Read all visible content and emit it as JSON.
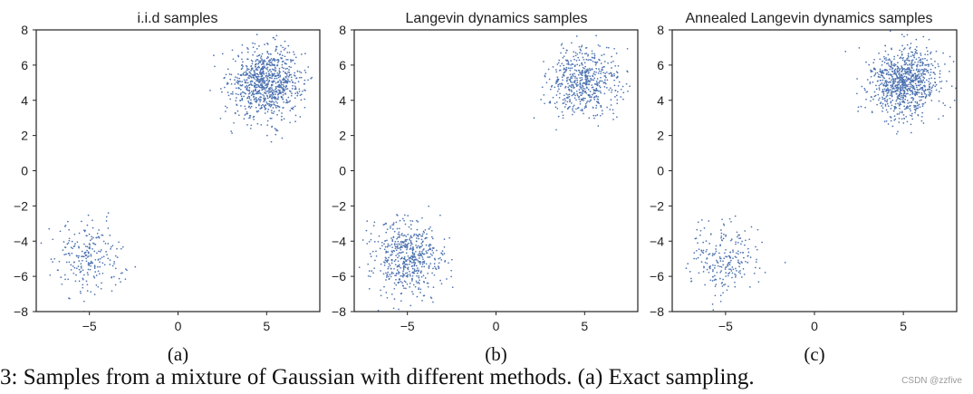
{
  "colors": {
    "point": "#4C72B0",
    "axis": "#222222",
    "text": "#222222"
  },
  "chart_data": [
    {
      "type": "scatter",
      "title": "i.i.d samples",
      "panel_label": "(a)",
      "xlim": [
        -8,
        8
      ],
      "ylim": [
        -8,
        8
      ],
      "xticks": [
        -5,
        0,
        5
      ],
      "yticks": [
        -8,
        -6,
        -4,
        -2,
        0,
        2,
        4,
        6,
        8
      ],
      "xtick_labels": [
        "−5",
        "0",
        "5"
      ],
      "ytick_labels": [
        "−8",
        "−6",
        "−4",
        "−2",
        "0",
        "2",
        "4",
        "6",
        "8"
      ],
      "grid": false,
      "clusters": [
        {
          "name": "mode at (5, 5)",
          "center": [
            5,
            5
          ],
          "std": 1.0,
          "n": 900
        },
        {
          "name": "mode at (-5, -5)",
          "center": [
            -5,
            -5
          ],
          "std": 1.0,
          "n": 230
        }
      ]
    },
    {
      "type": "scatter",
      "title": "Langevin dynamics samples",
      "panel_label": "(b)",
      "xlim": [
        -8,
        8
      ],
      "ylim": [
        -8,
        8
      ],
      "xticks": [
        -5,
        0,
        5
      ],
      "yticks": [
        -8,
        -6,
        -4,
        -2,
        0,
        2,
        4,
        6,
        8
      ],
      "xtick_labels": [
        "−5",
        "0",
        "5"
      ],
      "ytick_labels": [
        "−8",
        "−6",
        "−4",
        "−2",
        "0",
        "2",
        "4",
        "6",
        "8"
      ],
      "grid": false,
      "clusters": [
        {
          "name": "mode at (5, 5)",
          "center": [
            5,
            5
          ],
          "std": 1.0,
          "n": 560
        },
        {
          "name": "mode at (-5, -5)",
          "center": [
            -5,
            -5
          ],
          "std": 1.0,
          "n": 560
        }
      ]
    },
    {
      "type": "scatter",
      "title": "Annealed Langevin dynamics samples",
      "panel_label": "(c)",
      "xlim": [
        -8,
        8
      ],
      "ylim": [
        -8,
        8
      ],
      "xticks": [
        -5,
        0,
        5
      ],
      "yticks": [
        -8,
        -6,
        -4,
        -2,
        0,
        2,
        4,
        6,
        8
      ],
      "xtick_labels": [
        "−5",
        "0",
        "5"
      ],
      "ytick_labels": [
        "−8",
        "−6",
        "−4",
        "−2",
        "0",
        "2",
        "4",
        "6",
        "8"
      ],
      "grid": false,
      "clusters": [
        {
          "name": "mode at (5, 5)",
          "center": [
            5,
            5
          ],
          "std": 1.0,
          "n": 900
        },
        {
          "name": "mode at (-5, -5)",
          "center": [
            -5,
            -5
          ],
          "std": 1.0,
          "n": 230
        }
      ]
    }
  ],
  "caption_fragment": "3: Samples from a mixture of Gaussian with different methods. (a) Exact sampling.",
  "watermark": "CSDN @zzfive"
}
